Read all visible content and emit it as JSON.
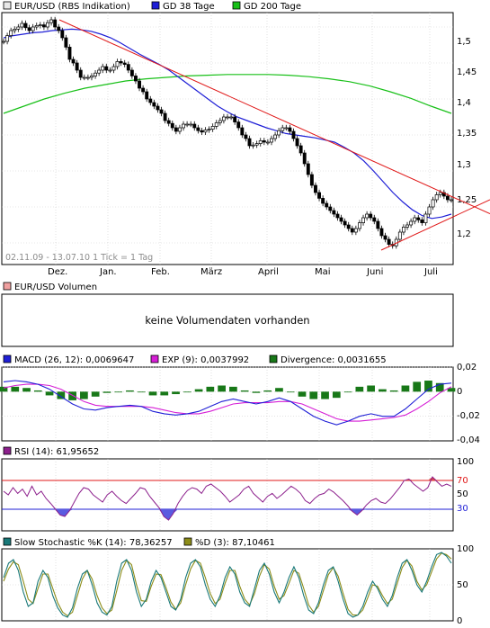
{
  "chart_data": [
    {
      "panel": "price",
      "type": "line",
      "subtype": "candlestick",
      "legend": [
        {
          "label": "EUR/USD (RBS Indikation)",
          "color": "#e8e8e8"
        },
        {
          "label": "GD 38 Tage",
          "color": "#1f1fd6"
        },
        {
          "label": "GD 200 Tage",
          "color": "#18c018"
        }
      ],
      "range_label": "02.11.09 - 13.07.10   1 Tick = 1 Tag",
      "x_ticks": [
        "Dez.",
        "Jan.",
        "Feb.",
        "März",
        "April",
        "Mai",
        "Juni",
        "Juli"
      ],
      "y_ticks": [
        "1,5",
        "1,45",
        "1,4",
        "1,35",
        "1,3",
        "1,25",
        "1,2"
      ],
      "ylim": [
        1.17,
        1.52
      ],
      "grid": true,
      "series": [
        {
          "name": "EUR/USD (RBS Indikation)",
          "color": "#000000",
          "values": [
            1.48,
            1.488,
            1.495,
            1.497,
            1.5,
            1.505,
            1.499,
            1.495,
            1.5,
            1.502,
            1.503,
            1.5,
            1.506,
            1.51,
            1.5,
            1.495,
            1.485,
            1.472,
            1.455,
            1.45,
            1.44,
            1.43,
            1.43,
            1.43,
            1.432,
            1.436,
            1.44,
            1.445,
            1.44,
            1.44,
            1.445,
            1.452,
            1.45,
            1.448,
            1.44,
            1.432,
            1.425,
            1.415,
            1.41,
            1.4,
            1.395,
            1.39,
            1.385,
            1.38,
            1.37,
            1.366,
            1.36,
            1.355,
            1.36,
            1.365,
            1.365,
            1.365,
            1.36,
            1.356,
            1.354,
            1.357,
            1.358,
            1.362,
            1.367,
            1.37,
            1.375,
            1.375,
            1.375,
            1.368,
            1.36,
            1.35,
            1.345,
            1.335,
            1.336,
            1.338,
            1.342,
            1.34,
            1.34,
            1.345,
            1.35,
            1.356,
            1.36,
            1.36,
            1.355,
            1.345,
            1.335,
            1.325,
            1.31,
            1.295,
            1.28,
            1.27,
            1.262,
            1.255,
            1.25,
            1.245,
            1.24,
            1.235,
            1.23,
            1.225,
            1.22,
            1.215,
            1.22,
            1.228,
            1.235,
            1.24,
            1.235,
            1.23,
            1.22,
            1.21,
            1.205,
            1.198,
            1.196,
            1.205,
            1.215,
            1.222,
            1.225,
            1.23,
            1.235,
            1.232,
            1.228,
            1.24,
            1.25,
            1.26,
            1.267,
            1.27,
            1.265,
            1.26,
            1.26
          ]
        },
        {
          "name": "GD 38 Tage",
          "color": "#1f1fd6",
          "values": [
            1.485,
            1.488,
            1.49,
            1.492,
            1.493,
            1.495,
            1.496,
            1.497,
            1.496,
            1.494,
            1.49,
            1.485,
            1.478,
            1.47,
            1.462,
            1.455,
            1.448,
            1.44,
            1.43,
            1.42,
            1.41,
            1.4,
            1.39,
            1.382,
            1.375,
            1.37,
            1.365,
            1.36,
            1.356,
            1.352,
            1.35,
            1.348,
            1.346,
            1.343,
            1.34,
            1.333,
            1.325,
            1.314,
            1.3,
            1.285,
            1.27,
            1.257,
            1.246,
            1.238,
            1.234,
            1.236,
            1.24
          ]
        },
        {
          "name": "GD 200 Tage",
          "color": "#18c018",
          "values": [
            1.38,
            1.39,
            1.4,
            1.408,
            1.415,
            1.42,
            1.425,
            1.428,
            1.43,
            1.432,
            1.433,
            1.434,
            1.434,
            1.434,
            1.433,
            1.431,
            1.428,
            1.424,
            1.418,
            1.41,
            1.401,
            1.39,
            1.38
          ]
        }
      ],
      "trendlines": [
        {
          "name": "upper",
          "color": "#e01818",
          "points": [
            [
              0,
              1.51
            ],
            [
              1,
              1.253
            ]
          ]
        },
        {
          "name": "lower",
          "color": "#e01818",
          "points": [
            [
              0,
              1.19
            ],
            [
              1,
              1.25
            ]
          ]
        }
      ]
    },
    {
      "panel": "volume",
      "type": "bar",
      "legend": [
        {
          "label": "EUR/USD Volumen",
          "color": "#f0a0a0"
        }
      ],
      "message": "keine Volumendaten vorhanden"
    },
    {
      "panel": "macd",
      "type": "line",
      "legend": [
        {
          "label": "MACD (26, 12): 0,0069647",
          "color": "#1f1fd6"
        },
        {
          "label": "EXP (9): 0,0037992",
          "color": "#d61fd6"
        },
        {
          "label": "Divergence: 0,0031655",
          "color": "#187818"
        }
      ],
      "y_ticks": [
        "0,02",
        "0",
        "-0,02",
        "-0,04"
      ],
      "ylim": [
        -0.04,
        0.02
      ],
      "series": [
        {
          "name": "MACD (26, 12): 0,0069647",
          "color": "#1f1fd6",
          "values": [
            0.008,
            0.009,
            0.008,
            0.006,
            0.002,
            -0.004,
            -0.01,
            -0.014,
            -0.015,
            -0.013,
            -0.012,
            -0.011,
            -0.012,
            -0.016,
            -0.018,
            -0.019,
            -0.018,
            -0.016,
            -0.012,
            -0.008,
            -0.006,
            -0.008,
            -0.01,
            -0.008,
            -0.005,
            -0.008,
            -0.014,
            -0.02,
            -0.024,
            -0.027,
            -0.024,
            -0.02,
            -0.018,
            -0.02,
            -0.02,
            -0.014,
            -0.006,
            0.002,
            0.006,
            0.007
          ]
        },
        {
          "name": "EXP (9): 0,0037992",
          "color": "#d61fd6",
          "values": [
            0.003,
            0.005,
            0.006,
            0.006,
            0.005,
            0.002,
            -0.003,
            -0.008,
            -0.011,
            -0.012,
            -0.012,
            -0.012,
            -0.012,
            -0.013,
            -0.015,
            -0.017,
            -0.018,
            -0.018,
            -0.016,
            -0.013,
            -0.01,
            -0.009,
            -0.009,
            -0.009,
            -0.008,
            -0.008,
            -0.01,
            -0.014,
            -0.018,
            -0.022,
            -0.024,
            -0.024,
            -0.023,
            -0.022,
            -0.021,
            -0.019,
            -0.014,
            -0.008,
            -0.001,
            0.004
          ]
        },
        {
          "name": "Divergence: 0,0031655",
          "color": "#187818",
          "values": [
            0.004,
            0.004,
            0.003,
            0.001,
            -0.003,
            -0.006,
            -0.007,
            -0.006,
            -0.004,
            -0.001,
            0.0,
            0.001,
            0.0,
            -0.003,
            -0.003,
            -0.002,
            0.0,
            0.002,
            0.004,
            0.005,
            0.004,
            0.001,
            -0.001,
            0.001,
            0.003,
            0.0,
            -0.004,
            -0.006,
            -0.006,
            -0.005,
            0.0,
            0.004,
            0.005,
            0.002,
            0.001,
            0.005,
            0.008,
            0.009,
            0.007,
            0.003
          ]
        }
      ]
    },
    {
      "panel": "rsi",
      "type": "line",
      "legend": [
        {
          "label": "RSI (14): 61,95652",
          "color": "#8c1f8c"
        }
      ],
      "y_ticks": [
        "100",
        "70",
        "50",
        "30"
      ],
      "ylim": [
        0,
        100
      ],
      "reference_lines": [
        {
          "value": 70,
          "color": "#e01818"
        },
        {
          "value": 30,
          "color": "#1f1fd6"
        }
      ],
      "series": [
        {
          "name": "RSI (14): 61,95652",
          "color": "#8c1f8c",
          "values": [
            55,
            50,
            60,
            52,
            58,
            48,
            62,
            50,
            55,
            45,
            38,
            30,
            22,
            20,
            28,
            40,
            52,
            60,
            58,
            50,
            45,
            40,
            50,
            55,
            48,
            42,
            38,
            45,
            52,
            60,
            58,
            48,
            40,
            32,
            20,
            15,
            24,
            38,
            48,
            56,
            60,
            58,
            52,
            62,
            65,
            60,
            55,
            48,
            40,
            45,
            50,
            58,
            62,
            52,
            46,
            40,
            48,
            52,
            45,
            50,
            56,
            62,
            58,
            52,
            42,
            38,
            45,
            50,
            52,
            58,
            54,
            48,
            42,
            35,
            27,
            22,
            28,
            36,
            42,
            45,
            40,
            38,
            44,
            52,
            60,
            70,
            72,
            65,
            60,
            55,
            60,
            75,
            68,
            62,
            65,
            62
          ]
        }
      ]
    },
    {
      "panel": "stochastic",
      "type": "line",
      "legend": [
        {
          "label": "Slow Stochastic %K (14): 78,36257",
          "color": "#187878"
        },
        {
          "label": "%D (3): 87,10461",
          "color": "#8c8c18"
        }
      ],
      "y_ticks": [
        "100",
        "50",
        "0"
      ],
      "ylim": [
        0,
        100
      ],
      "series": [
        {
          "name": "Slow Stochastic %K (14): 78,36257",
          "color": "#187878",
          "values": [
            60,
            80,
            85,
            70,
            40,
            20,
            25,
            55,
            70,
            60,
            35,
            18,
            8,
            5,
            18,
            45,
            65,
            70,
            50,
            25,
            12,
            8,
            20,
            55,
            80,
            85,
            70,
            40,
            20,
            30,
            55,
            70,
            60,
            40,
            20,
            15,
            30,
            60,
            80,
            85,
            75,
            50,
            30,
            20,
            35,
            60,
            75,
            65,
            40,
            25,
            20,
            45,
            70,
            80,
            65,
            40,
            25,
            40,
            60,
            75,
            60,
            35,
            15,
            10,
            25,
            50,
            70,
            75,
            55,
            30,
            10,
            5,
            8,
            20,
            40,
            55,
            45,
            30,
            20,
            35,
            60,
            80,
            85,
            70,
            50,
            40,
            55,
            75,
            92,
            95,
            90,
            80
          ]
        },
        {
          "name": "%D (3): 87,10461",
          "color": "#8c8c18",
          "values": [
            55,
            72,
            82,
            78,
            55,
            30,
            24,
            45,
            65,
            65,
            45,
            25,
            12,
            7,
            12,
            35,
            58,
            70,
            58,
            35,
            18,
            10,
            15,
            42,
            70,
            84,
            78,
            50,
            28,
            27,
            48,
            65,
            64,
            46,
            26,
            16,
            25,
            50,
            72,
            84,
            80,
            60,
            38,
            24,
            30,
            52,
            70,
            70,
            48,
            30,
            22,
            38,
            62,
            78,
            72,
            48,
            30,
            35,
            52,
            70,
            66,
            45,
            22,
            12,
            20,
            42,
            64,
            74,
            62,
            38,
            16,
            8,
            8,
            15,
            32,
            50,
            48,
            35,
            24,
            30,
            52,
            74,
            84,
            76,
            55,
            43,
            50,
            68,
            86,
            94,
            92,
            86
          ]
        }
      ]
    }
  ]
}
